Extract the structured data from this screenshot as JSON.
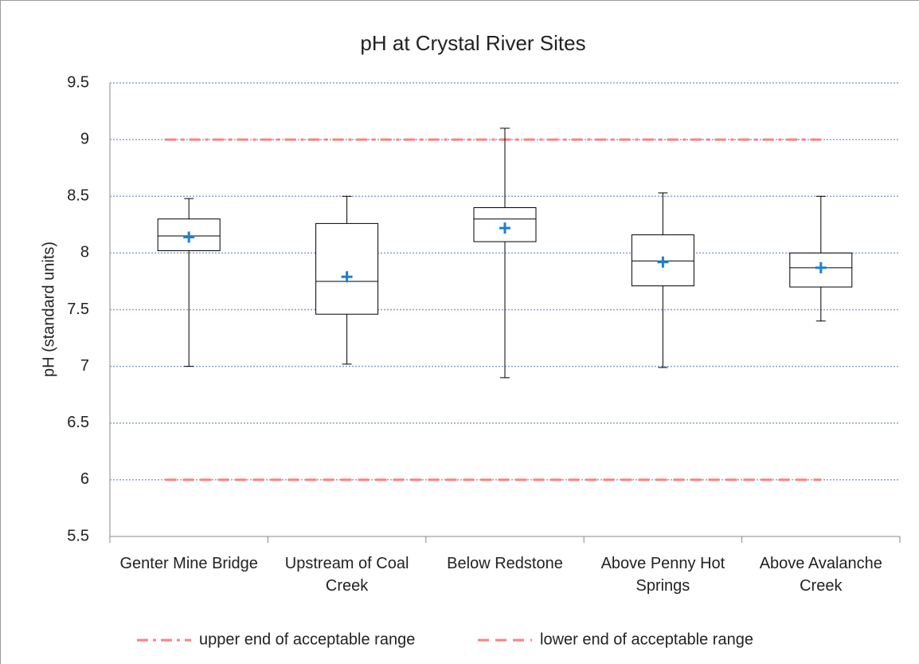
{
  "chart_data": {
    "type": "box",
    "title": "pH at Crystal River Sites",
    "y_label": "pH (standard units)",
    "categories": [
      "Genter Mine Bridge",
      "Upstream of Coal Creek",
      "Below Redstone",
      "Above Penny Hot Springs",
      "Above Avalanche Creek"
    ],
    "boxes": [
      {
        "min": 7.0,
        "q1": 8.02,
        "median": 8.15,
        "q3": 8.3,
        "max": 8.48,
        "mean": 8.14
      },
      {
        "min": 7.02,
        "q1": 7.46,
        "median": 7.75,
        "q3": 8.26,
        "max": 8.5,
        "mean": 7.79
      },
      {
        "min": 6.9,
        "q1": 8.1,
        "median": 8.3,
        "q3": 8.4,
        "max": 9.1,
        "mean": 8.22
      },
      {
        "min": 6.99,
        "q1": 7.71,
        "median": 7.93,
        "q3": 8.16,
        "max": 8.53,
        "mean": 7.92
      },
      {
        "min": 7.4,
        "q1": 7.7,
        "median": 7.87,
        "q3": 8.0,
        "max": 8.5,
        "mean": 7.87
      }
    ],
    "box_color": "#000000",
    "mean_color": "#1f7fcf",
    "reference_lines": [
      {
        "name": "upper end of acceptable range",
        "value": 9,
        "color": "#ff8080",
        "dash": "dashdot"
      },
      {
        "name": "lower end of acceptable range",
        "value": 6,
        "color": "#ff8080",
        "dash": "dash"
      }
    ],
    "ylim": [
      5.5,
      9.5
    ],
    "yticks": [
      5.5,
      6,
      6.5,
      7,
      7.5,
      8,
      8.5,
      9,
      9.5
    ],
    "grid": true,
    "legend": "bottom"
  }
}
